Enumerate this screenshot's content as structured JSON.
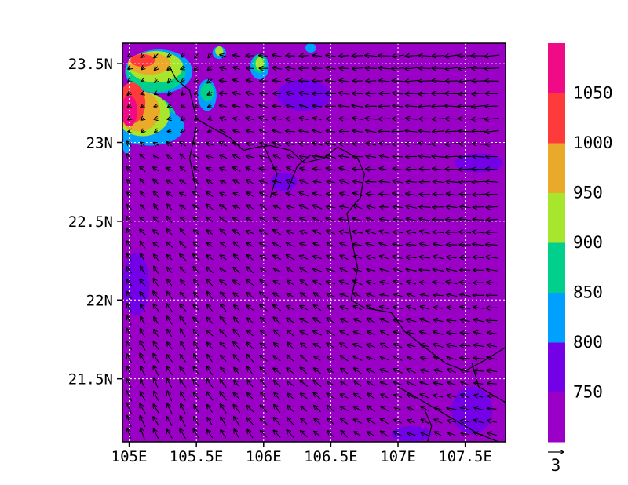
{
  "chart_data": {
    "type": "heatmap",
    "subtype": "filled-contour map with wind vector overlay",
    "background_fill_color": "#9b00c6",
    "xlim": [
      104.95,
      107.8
    ],
    "ylim": [
      21.1,
      23.63
    ],
    "x_ticks": [
      105,
      105.5,
      106,
      106.5,
      107,
      107.5
    ],
    "x_tick_labels": [
      "105E",
      "105.5E",
      "106E",
      "106.5E",
      "107E",
      "107.5E"
    ],
    "y_ticks": [
      21.5,
      22,
      22.5,
      23,
      23.5
    ],
    "y_tick_labels": [
      "21.5N",
      "22N",
      "22.5N",
      "23N",
      "23.5N"
    ],
    "grid": true,
    "colorbar": {
      "levels": [
        750,
        800,
        850,
        900,
        950,
        1000,
        1050
      ],
      "labels": [
        "750",
        "800",
        "850",
        "900",
        "950",
        "1000",
        "1050"
      ],
      "colors": [
        "#9b00c6",
        "#7300e6",
        "#00a0ff",
        "#00d08c",
        "#a8e62e",
        "#e8aa28",
        "#ff3a3a",
        "#f00a86"
      ]
    },
    "contour_patches": [
      {
        "level_color": "#f00a86",
        "lon": 105.0,
        "lat": 23.2,
        "rx": 0.06,
        "ry": 0.1
      },
      {
        "level_color": "#ff3a3a",
        "lon": 105.02,
        "lat": 23.25,
        "rx": 0.1,
        "ry": 0.13
      },
      {
        "level_color": "#e8aa28",
        "lon": 105.07,
        "lat": 23.2,
        "rx": 0.16,
        "ry": 0.13
      },
      {
        "level_color": "#a8e62e",
        "lon": 105.1,
        "lat": 23.18,
        "rx": 0.2,
        "ry": 0.14
      },
      {
        "level_color": "#00d08c",
        "lon": 105.12,
        "lat": 23.15,
        "rx": 0.23,
        "ry": 0.15
      },
      {
        "level_color": "#00a0ff",
        "lon": 105.15,
        "lat": 23.1,
        "rx": 0.26,
        "ry": 0.12
      },
      {
        "level_color": "#ff3a3a",
        "lon": 105.1,
        "lat": 23.52,
        "rx": 0.09,
        "ry": 0.04
      },
      {
        "level_color": "#e8aa28",
        "lon": 105.15,
        "lat": 23.5,
        "rx": 0.16,
        "ry": 0.07
      },
      {
        "level_color": "#a8e62e",
        "lon": 105.2,
        "lat": 23.48,
        "rx": 0.2,
        "ry": 0.1
      },
      {
        "level_color": "#00d08c",
        "lon": 105.2,
        "lat": 23.45,
        "rx": 0.22,
        "ry": 0.13
      },
      {
        "level_color": "#00a0ff",
        "lon": 105.22,
        "lat": 23.45,
        "rx": 0.25,
        "ry": 0.14
      },
      {
        "level_color": "#00a0ff",
        "lon": 105.58,
        "lat": 23.3,
        "rx": 0.07,
        "ry": 0.1
      },
      {
        "level_color": "#00d08c",
        "lon": 105.58,
        "lat": 23.32,
        "rx": 0.05,
        "ry": 0.06
      },
      {
        "level_color": "#00a0ff",
        "lon": 105.67,
        "lat": 23.57,
        "rx": 0.05,
        "ry": 0.04
      },
      {
        "level_color": "#a8e62e",
        "lon": 105.67,
        "lat": 23.58,
        "rx": 0.03,
        "ry": 0.03
      },
      {
        "level_color": "#00a0ff",
        "lon": 105.97,
        "lat": 23.48,
        "rx": 0.07,
        "ry": 0.08
      },
      {
        "level_color": "#00d08c",
        "lon": 105.97,
        "lat": 23.5,
        "rx": 0.05,
        "ry": 0.06
      },
      {
        "level_color": "#a8e62e",
        "lon": 105.97,
        "lat": 23.5,
        "rx": 0.03,
        "ry": 0.04
      },
      {
        "level_color": "#00a0ff",
        "lon": 106.35,
        "lat": 23.6,
        "rx": 0.04,
        "ry": 0.03
      },
      {
        "level_color": "#00a0ff",
        "lon": 104.98,
        "lat": 22.98,
        "rx": 0.03,
        "ry": 0.05
      },
      {
        "level_color": "#7300e6",
        "lon": 106.3,
        "lat": 23.3,
        "rx": 0.2,
        "ry": 0.1
      },
      {
        "level_color": "#7300e6",
        "lon": 106.15,
        "lat": 22.75,
        "rx": 0.1,
        "ry": 0.06
      },
      {
        "level_color": "#7300e6",
        "lon": 107.6,
        "lat": 22.87,
        "rx": 0.18,
        "ry": 0.06
      },
      {
        "level_color": "#7300e6",
        "lon": 105.05,
        "lat": 22.1,
        "rx": 0.1,
        "ry": 0.2
      },
      {
        "level_color": "#7300e6",
        "lon": 107.55,
        "lat": 21.3,
        "rx": 0.15,
        "ry": 0.15
      },
      {
        "level_color": "#7300e6",
        "lon": 107.1,
        "lat": 21.15,
        "rx": 0.15,
        "ry": 0.05
      }
    ],
    "coastlines": [
      [
        [
          105.3,
          23.48
        ],
        [
          105.35,
          23.4
        ],
        [
          105.45,
          23.33
        ],
        [
          105.5,
          23.15
        ],
        [
          105.6,
          23.1
        ],
        [
          105.75,
          23.03
        ],
        [
          105.85,
          22.95
        ],
        [
          105.95,
          22.97
        ],
        [
          106.05,
          22.98
        ],
        [
          106.2,
          22.95
        ],
        [
          106.3,
          22.87
        ],
        [
          106.45,
          22.9
        ],
        [
          106.55,
          22.97
        ],
        [
          106.7,
          22.9
        ],
        [
          106.75,
          22.8
        ],
        [
          106.72,
          22.65
        ],
        [
          106.62,
          22.55
        ],
        [
          106.65,
          22.4
        ],
        [
          106.7,
          22.2
        ],
        [
          106.65,
          22.0
        ],
        [
          106.75,
          21.95
        ],
        [
          106.95,
          21.92
        ],
        [
          107.05,
          21.8
        ],
        [
          107.2,
          21.7
        ],
        [
          107.35,
          21.6
        ],
        [
          107.5,
          21.55
        ],
        [
          107.65,
          21.62
        ],
        [
          107.8,
          21.7
        ]
      ],
      [
        [
          106.18,
          22.7
        ],
        [
          106.25,
          22.85
        ],
        [
          106.35,
          22.92
        ],
        [
          106.5,
          22.9
        ]
      ],
      [
        [
          107.0,
          21.45
        ],
        [
          107.2,
          21.35
        ],
        [
          107.4,
          21.25
        ],
        [
          107.6,
          21.15
        ],
        [
          107.75,
          21.1
        ]
      ],
      [
        [
          107.2,
          21.3
        ],
        [
          107.25,
          21.2
        ],
        [
          107.22,
          21.1
        ]
      ],
      [
        [
          107.55,
          21.6
        ],
        [
          107.6,
          21.45
        ],
        [
          107.7,
          21.4
        ],
        [
          107.8,
          21.35
        ]
      ],
      [
        [
          105.5,
          23.1
        ],
        [
          105.45,
          22.9
        ],
        [
          105.5,
          22.7
        ]
      ],
      [
        [
          106.0,
          22.98
        ],
        [
          106.1,
          22.8
        ],
        [
          106.05,
          22.65
        ]
      ]
    ],
    "vector_field": {
      "reference_vector_label": "3",
      "lon_start": 105.0,
      "lon_step": 0.1,
      "lon_count": 28,
      "lat_start": 21.15,
      "lat_step": 0.08,
      "lat_count": 31,
      "flow_description": "easterly in the north-east, backing to south-easterly in the south-west, converging north-westward toward the upper-left"
    }
  }
}
